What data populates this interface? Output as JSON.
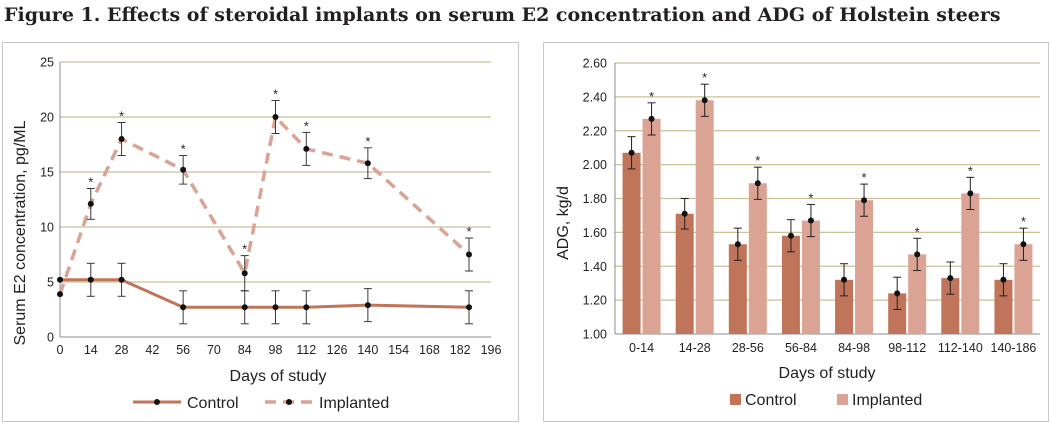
{
  "figure": {
    "title": "Figure 1. Effects of steroidal implants on serum E2 concentration and ADG of Holstein steers"
  },
  "colors": {
    "control": "#c0755a",
    "implanted": "#dba393",
    "grid": "#c8c29a"
  },
  "chart_data": [
    {
      "type": "line",
      "title": "",
      "xlabel": "Days of study",
      "ylabel": "Serum E2 concentration, pg/ML",
      "xlim": [
        0,
        196
      ],
      "ylim": [
        0,
        25
      ],
      "x_ticks": [
        0,
        14,
        28,
        42,
        56,
        70,
        84,
        98,
        112,
        126,
        140,
        154,
        168,
        182,
        196
      ],
      "y_ticks": [
        0,
        5,
        10,
        15,
        20,
        25
      ],
      "grid": "horizontal",
      "legend": "bottom",
      "series": [
        {
          "name": "Control",
          "style": "solid",
          "x": [
            0,
            14,
            28,
            56,
            84,
            98,
            112,
            140,
            186
          ],
          "y": [
            5.2,
            5.2,
            5.2,
            2.7,
            2.7,
            2.7,
            2.7,
            2.9,
            2.7
          ],
          "err": [
            0,
            1.5,
            1.5,
            1.5,
            1.5,
            1.5,
            1.5,
            1.5,
            1.5
          ],
          "sig": [
            false,
            false,
            false,
            false,
            false,
            false,
            false,
            false,
            false
          ]
        },
        {
          "name": "Implanted",
          "style": "dashed",
          "x": [
            0,
            14,
            28,
            56,
            84,
            98,
            112,
            140,
            186
          ],
          "y": [
            3.9,
            12.1,
            18.0,
            15.2,
            5.8,
            20.0,
            17.1,
            15.8,
            7.5
          ],
          "err": [
            0,
            1.4,
            1.5,
            1.3,
            1.6,
            1.5,
            1.5,
            1.4,
            1.5
          ],
          "sig": [
            false,
            true,
            true,
            true,
            true,
            true,
            true,
            true,
            true
          ]
        }
      ]
    },
    {
      "type": "bar",
      "title": "",
      "xlabel": "Days of study",
      "ylabel": "ADG, kg/d",
      "ylim": [
        1.0,
        2.6
      ],
      "y_ticks": [
        "1.00",
        "1.20",
        "1.40",
        "1.60",
        "1.80",
        "2.00",
        "2.20",
        "2.40",
        "2.60"
      ],
      "grid": "horizontal",
      "legend": "bottom",
      "categories": [
        "0-14",
        "14-28",
        "28-56",
        "56-84",
        "84-98",
        "98-112",
        "112-140",
        "140-186"
      ],
      "series": [
        {
          "name": "Control",
          "values": [
            2.07,
            1.71,
            1.53,
            1.58,
            1.32,
            1.24,
            1.33,
            1.32
          ],
          "err": [
            0.095,
            0.09,
            0.095,
            0.095,
            0.095,
            0.095,
            0.095,
            0.095
          ],
          "sig": [
            false,
            false,
            false,
            false,
            false,
            false,
            false,
            false
          ]
        },
        {
          "name": "Implanted",
          "values": [
            2.27,
            2.38,
            1.89,
            1.67,
            1.79,
            1.47,
            1.83,
            1.53
          ],
          "err": [
            0.095,
            0.095,
            0.095,
            0.095,
            0.095,
            0.095,
            0.095,
            0.095
          ],
          "sig": [
            true,
            true,
            true,
            true,
            true,
            true,
            true,
            true
          ]
        }
      ]
    }
  ]
}
